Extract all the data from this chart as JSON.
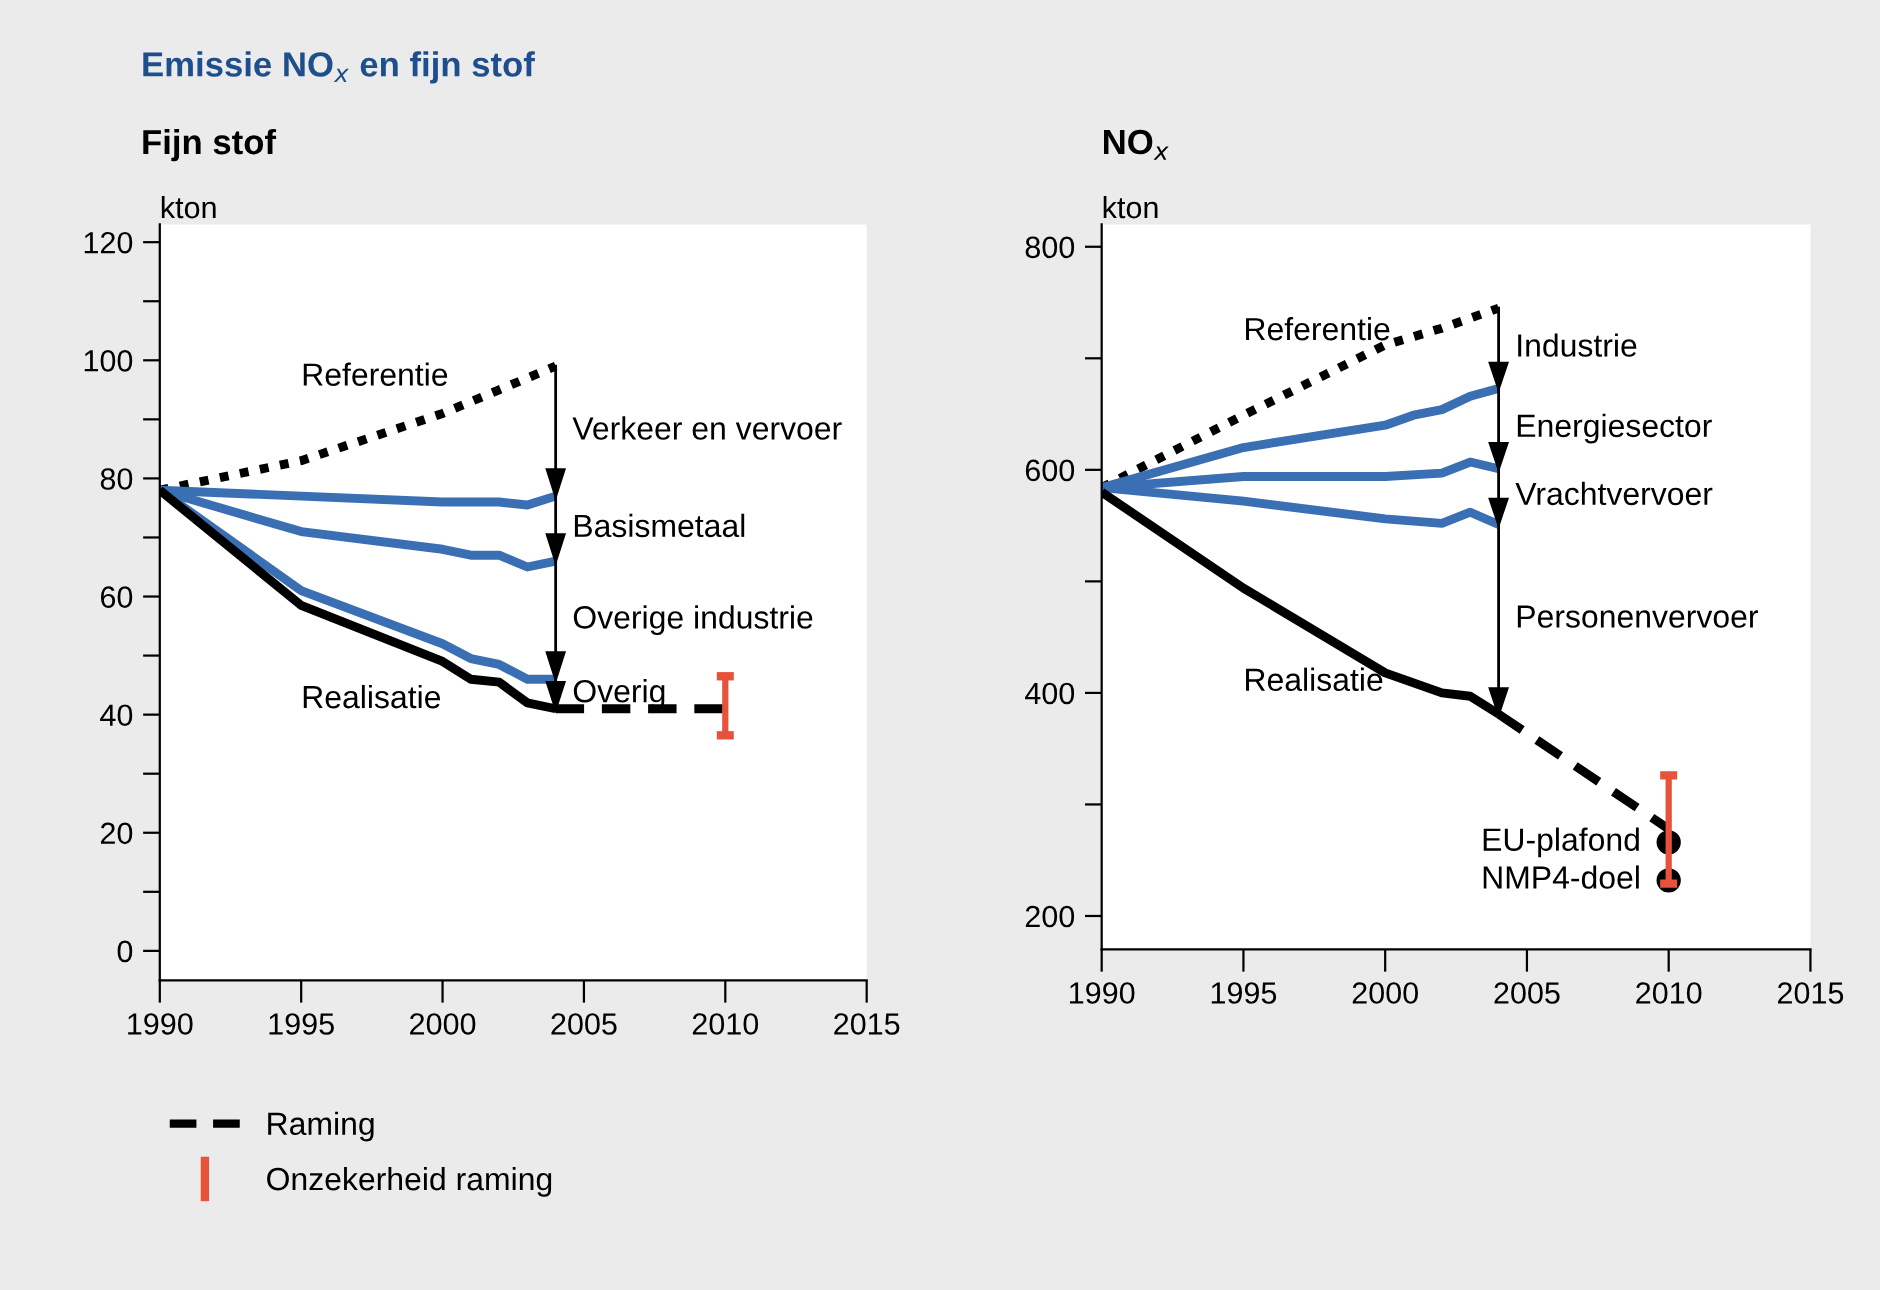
{
  "chart_data": [
    {
      "type": "line",
      "title": "Emissie NO$_{x}$ en fijn stof",
      "subtitle": "Fijn stof",
      "ylabel": "kton",
      "xlim": [
        1990,
        2015
      ],
      "xticks": [
        1990,
        1995,
        2000,
        2005,
        2010,
        2015
      ],
      "ylim": [
        -5,
        123
      ],
      "yticks": [
        0,
        {
          "value": 10,
          "label": null
        },
        20,
        {
          "value": 30,
          "label": null
        },
        40,
        {
          "value": 50,
          "label": null
        },
        60,
        {
          "value": 70,
          "label": null
        },
        80,
        {
          "value": 90,
          "label": null
        },
        100,
        {
          "value": 110,
          "label": null
        },
        120
      ],
      "grid": false,
      "legend": "bottom",
      "series": [
        {
          "color": "#000000",
          "line_style": "dotted",
          "x": [
            1990,
            1995,
            2000,
            2002,
            2004
          ],
          "values": [
            78,
            83,
            91,
            95,
            99
          ]
        },
        {
          "color": "#3a6fb3",
          "line_style": "solid",
          "x": [
            1990,
            1995,
            2000,
            2001,
            2002,
            2003,
            2004
          ],
          "values": [
            78,
            77,
            76,
            76,
            76,
            75.5,
            77
          ]
        },
        {
          "color": "#3a6fb3",
          "line_style": "solid",
          "x": [
            1990,
            1995,
            2000,
            2001,
            2002,
            2003,
            2004
          ],
          "values": [
            78,
            71,
            68,
            67,
            67,
            65,
            66
          ]
        },
        {
          "color": "#3a6fb3",
          "line_style": "solid",
          "x": [
            1990,
            1995,
            2000,
            2001,
            2002,
            2003,
            2004
          ],
          "values": [
            78,
            61,
            52,
            49.5,
            48.5,
            46,
            46
          ]
        },
        {
          "color": "#000000",
          "line_style": "solid",
          "x": [
            1990,
            1995,
            2000,
            2001,
            2002,
            2003,
            2004
          ],
          "values": [
            78,
            58.5,
            49,
            46,
            45.5,
            42,
            41
          ]
        },
        {
          "name": "Raming",
          "color": "#000000",
          "line_style": "dashed",
          "x": [
            2004,
            2010
          ],
          "values": [
            41,
            41
          ]
        },
        {
          "name": "Onzekerheid raming",
          "type": "bar",
          "color": "#e8513a",
          "x": [
            2010
          ],
          "base": [
            36.5
          ],
          "values": [
            10
          ]
        }
      ],
      "annotations": [
        {
          "text": "Referentie",
          "x": 1995,
          "y": 83
        },
        {
          "text": "Verkeer en vervoer",
          "x": 2004,
          "y": 99
        },
        "Basismetaal",
        "Overige industrie",
        "Overig",
        {
          "text": "Realisatie",
          "x": 1995,
          "y": 58.5
        }
      ]
    },
    {
      "type": "line",
      "title": "NO$_{x}$",
      "ylabel": "kton",
      "xlim": [
        1990,
        2015
      ],
      "xticks": [
        1990,
        1995,
        2000,
        2005,
        2010,
        2015
      ],
      "ylim": [
        170,
        820
      ],
      "yticks": [
        200,
        {
          "value": 300,
          "label": null
        },
        400,
        {
          "value": 500,
          "label": null
        },
        600,
        {
          "value": 700,
          "label": null
        },
        800
      ],
      "grid": false,
      "series": [
        {
          "color": "#000000",
          "line_style": "dotted",
          "x": [
            1990,
            1995,
            2000,
            2002,
            2004
          ],
          "values": [
            584,
            649,
            712,
            727,
            745
          ]
        },
        {
          "color": "#3a6fb3",
          "line_style": "solid",
          "x": [
            1990,
            1995,
            2000,
            2001,
            2002,
            2003,
            2004
          ],
          "values": [
            584,
            620,
            640,
            649,
            654,
            666,
            673
          ]
        },
        {
          "color": "#3a6fb3",
          "line_style": "solid",
          "x": [
            1990,
            1995,
            2000,
            2002,
            2003,
            2004
          ],
          "values": [
            584,
            594,
            594,
            597,
            607,
            601
          ]
        },
        {
          "color": "#3a6fb3",
          "line_style": "solid",
          "x": [
            1990,
            1995,
            2000,
            2002,
            2003,
            2004
          ],
          "values": [
            584,
            572,
            556,
            552,
            562,
            551
          ]
        },
        {
          "color": "#000000",
          "line_style": "solid",
          "x": [
            1990,
            1995,
            2000,
            2002,
            2003,
            2004
          ],
          "values": [
            580,
            494,
            418,
            400,
            397,
            381
          ]
        },
        {
          "color": "#000000",
          "line_style": "dashed",
          "x": [
            2004,
            2010
          ],
          "values": [
            381,
            278
          ]
        },
        {
          "type": "bar",
          "color": "#e8513a",
          "x": [
            2010
          ],
          "base": [
            229
          ],
          "values": [
            97
          ]
        },
        {
          "type": "scatter",
          "marker": "circle",
          "color": "#000000",
          "x": [
            2010,
            2010
          ],
          "values": [
            266,
            232
          ]
        }
      ],
      "annotations": [
        {
          "text": "Referentie",
          "x": 1995,
          "y": 649
        },
        "Industrie",
        "Energiesector",
        "Vrachtvervoer",
        "Personenvervoer",
        {
          "text": "Realisatie",
          "x": 1995,
          "y": 494
        },
        {
          "text": "EU-plafond",
          "x": 2010,
          "y": 266
        },
        {
          "text": "NMP4-doel",
          "x": 2010,
          "y": 232
        }
      ]
    }
  ]
}
